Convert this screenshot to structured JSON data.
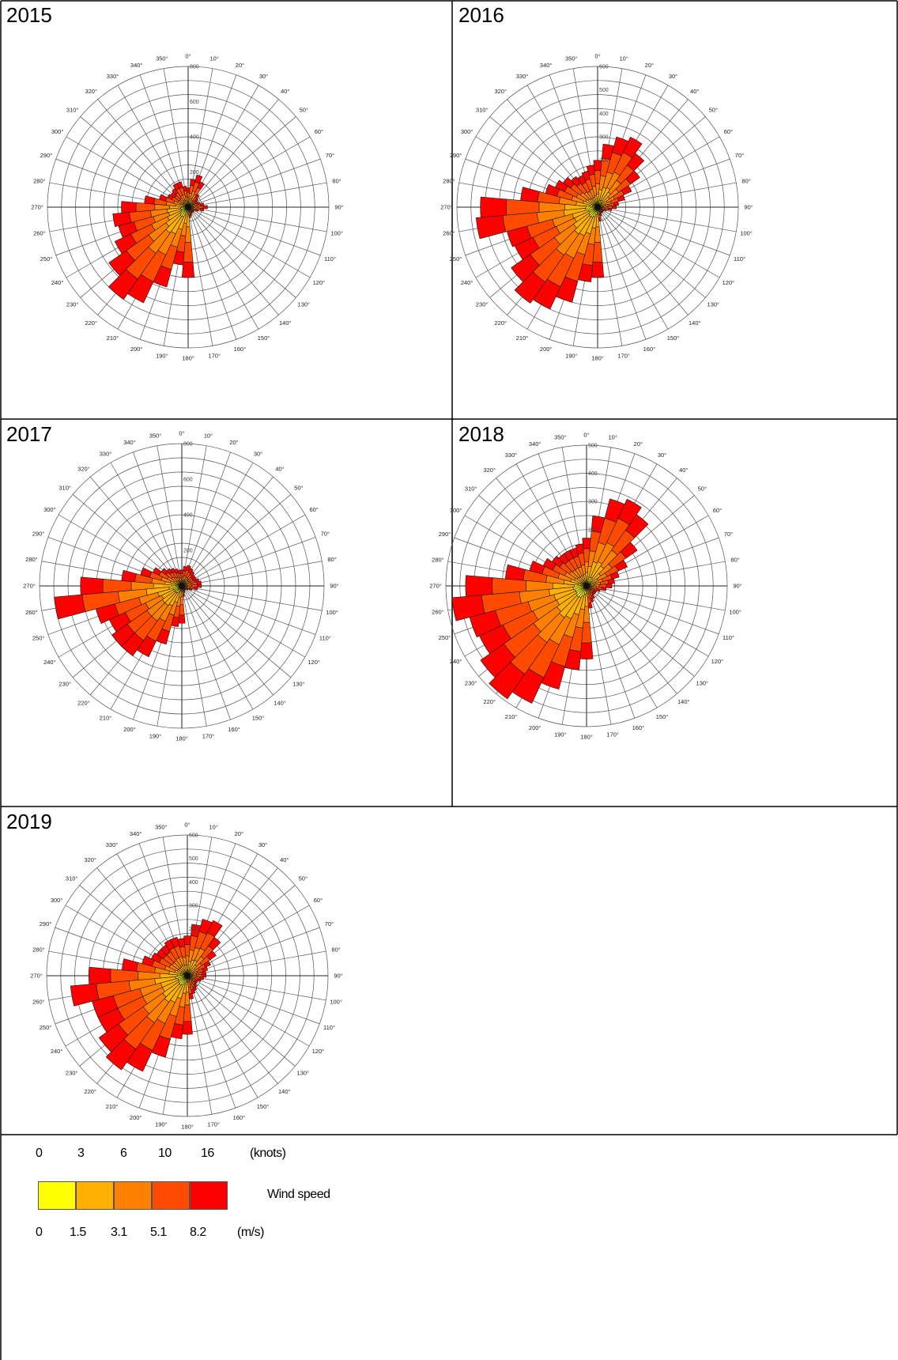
{
  "chart_data": [
    {
      "type": "polar-bar",
      "title": "2015",
      "direction_labels": [
        "0°",
        "10°",
        "20°",
        "30°",
        "40°",
        "50°",
        "60°",
        "70°",
        "80°",
        "90°",
        "100°",
        "110°",
        "120°",
        "130°",
        "140°",
        "150°",
        "160°",
        "170°",
        "180°",
        "190°",
        "200°",
        "210°",
        "220°",
        "230°",
        "240°",
        "250°",
        "260°",
        "270°",
        "280°",
        "290°",
        "300°",
        "310°",
        "320°",
        "330°",
        "340°",
        "350°"
      ],
      "radial_ticks": [
        "200",
        "400",
        "600",
        "800"
      ],
      "rmax": 800,
      "directions_deg": [
        0,
        10,
        20,
        30,
        40,
        50,
        60,
        70,
        80,
        90,
        100,
        110,
        120,
        130,
        140,
        150,
        160,
        170,
        180,
        190,
        200,
        210,
        220,
        230,
        240,
        250,
        260,
        270,
        280,
        290,
        300,
        310,
        320,
        330,
        340,
        350
      ],
      "totals": [
        110,
        160,
        190,
        160,
        90,
        70,
        60,
        70,
        90,
        110,
        90,
        60,
        40,
        40,
        40,
        40,
        50,
        60,
        400,
        330,
        470,
        600,
        640,
        550,
        460,
        410,
        430,
        380,
        250,
        170,
        130,
        120,
        130,
        150,
        150,
        120
      ]
    },
    {
      "type": "polar-bar",
      "title": "2016",
      "direction_labels": [
        "0°",
        "10°",
        "20°",
        "30°",
        "40°",
        "50°",
        "60°",
        "70°",
        "80°",
        "90°",
        "100°",
        "110°",
        "120°",
        "130°",
        "140°",
        "150°",
        "160°",
        "170°",
        "180°",
        "190°",
        "200°",
        "210°",
        "220°",
        "230°",
        "240°",
        "250°",
        "260°",
        "270°",
        "280°",
        "290°",
        "300°",
        "310°",
        "320°",
        "330°",
        "340°",
        "350°"
      ],
      "radial_ticks": [
        "200",
        "300",
        "400",
        "500",
        "600"
      ],
      "rmax": 600,
      "directions_deg": [
        0,
        10,
        20,
        30,
        40,
        50,
        60,
        70,
        80,
        90,
        100,
        110,
        120,
        130,
        140,
        150,
        160,
        170,
        180,
        190,
        200,
        210,
        220,
        230,
        240,
        250,
        260,
        270,
        280,
        290,
        300,
        310,
        320,
        330,
        340,
        350
      ],
      "totals": [
        200,
        270,
        310,
        330,
        280,
        220,
        160,
        120,
        90,
        80,
        60,
        40,
        30,
        30,
        30,
        30,
        40,
        60,
        300,
        320,
        420,
        480,
        500,
        450,
        390,
        400,
        520,
        500,
        330,
        230,
        200,
        180,
        160,
        150,
        160,
        180
      ]
    },
    {
      "type": "polar-bar",
      "title": "2017",
      "direction_labels": [
        "0°",
        "10°",
        "20°",
        "30°",
        "40°",
        "50°",
        "60°",
        "70°",
        "80°",
        "90°",
        "100°",
        "110°",
        "120°",
        "130°",
        "140°",
        "150°",
        "160°",
        "170°",
        "180°",
        "190°",
        "200°",
        "210°",
        "220°",
        "230°",
        "240°",
        "250°",
        "260°",
        "270°",
        "280°",
        "290°",
        "300°",
        "310°",
        "320°",
        "330°",
        "340°",
        "350°"
      ],
      "radial_ticks": [
        "200",
        "400",
        "600",
        "800"
      ],
      "rmax": 800,
      "directions_deg": [
        0,
        10,
        20,
        30,
        40,
        50,
        60,
        70,
        80,
        90,
        100,
        110,
        120,
        130,
        140,
        150,
        160,
        170,
        180,
        190,
        200,
        210,
        220,
        230,
        240,
        250,
        260,
        270,
        280,
        290,
        300,
        310,
        320,
        330,
        340,
        350
      ],
      "totals": [
        90,
        110,
        120,
        110,
        100,
        90,
        90,
        100,
        110,
        110,
        90,
        60,
        40,
        30,
        30,
        30,
        40,
        60,
        210,
        230,
        340,
        440,
        480,
        480,
        450,
        500,
        720,
        570,
        340,
        240,
        180,
        140,
        120,
        110,
        100,
        90
      ]
    },
    {
      "type": "polar-bar",
      "title": "2018",
      "direction_labels": [
        "0°",
        "10°",
        "20°",
        "30°",
        "40°",
        "50°",
        "60°",
        "70°",
        "80°",
        "90°",
        "100°",
        "110°",
        "120°",
        "130°",
        "140°",
        "150°",
        "160°",
        "170°",
        "180°",
        "190°",
        "200°",
        "210°",
        "220°",
        "230°",
        "240°",
        "250°",
        "260°",
        "270°",
        "280°",
        "290°",
        "300°",
        "310°",
        "320°",
        "330°",
        "340°",
        "350°"
      ],
      "radial_ticks": [
        "200",
        "300",
        "400",
        "500"
      ],
      "rmax": 500,
      "directions_deg": [
        0,
        10,
        20,
        30,
        40,
        50,
        60,
        70,
        80,
        90,
        100,
        110,
        120,
        130,
        140,
        150,
        160,
        170,
        180,
        190,
        200,
        210,
        220,
        230,
        240,
        250,
        260,
        270,
        280,
        290,
        300,
        310,
        320,
        330,
        340,
        350
      ],
      "totals": [
        170,
        250,
        320,
        340,
        310,
        220,
        160,
        120,
        100,
        90,
        70,
        50,
        40,
        40,
        40,
        50,
        60,
        80,
        260,
        300,
        380,
        460,
        490,
        460,
        420,
        430,
        480,
        430,
        290,
        210,
        170,
        150,
        140,
        140,
        140,
        150
      ]
    },
    {
      "type": "polar-bar",
      "title": "2019",
      "direction_labels": [
        "0°",
        "10°",
        "20°",
        "30°",
        "40°",
        "50°",
        "60°",
        "70°",
        "80°",
        "90°",
        "100°",
        "110°",
        "120°",
        "130°",
        "140°",
        "150°",
        "160°",
        "170°",
        "180°",
        "190°",
        "200°",
        "210°",
        "220°",
        "230°",
        "240°",
        "250°",
        "260°",
        "270°",
        "280°",
        "290°",
        "300°",
        "310°",
        "320°",
        "330°",
        "340°",
        "350°"
      ],
      "radial_ticks": [
        "200",
        "300",
        "400",
        "500",
        "600"
      ],
      "rmax": 600,
      "directions_deg": [
        0,
        10,
        20,
        30,
        40,
        50,
        60,
        70,
        80,
        90,
        100,
        110,
        120,
        130,
        140,
        150,
        160,
        170,
        180,
        190,
        200,
        210,
        220,
        230,
        240,
        250,
        260,
        270,
        280,
        290,
        300,
        310,
        320,
        330,
        340,
        350
      ],
      "totals": [
        170,
        220,
        250,
        260,
        200,
        150,
        110,
        90,
        80,
        80,
        70,
        60,
        50,
        50,
        60,
        70,
        80,
        100,
        250,
        270,
        360,
        450,
        490,
        460,
        420,
        420,
        500,
        420,
        280,
        200,
        170,
        160,
        160,
        170,
        170,
        160
      ]
    }
  ],
  "speed_bin_fractions": [
    0.1,
    0.18,
    0.22,
    0.28,
    0.22
  ],
  "bin_colors": [
    "#ffff00",
    "#ffb000",
    "#ff8000",
    "#ff4a00",
    "#ff0000"
  ],
  "legend": {
    "knots_ticks": [
      "0",
      "3",
      "6",
      "10",
      "16"
    ],
    "knots_unit": "(knots)",
    "ms_ticks": [
      "0",
      "1.5",
      "3.1",
      "5.1",
      "8.2"
    ],
    "ms_unit": "(m/s)",
    "title": "Wind speed"
  }
}
